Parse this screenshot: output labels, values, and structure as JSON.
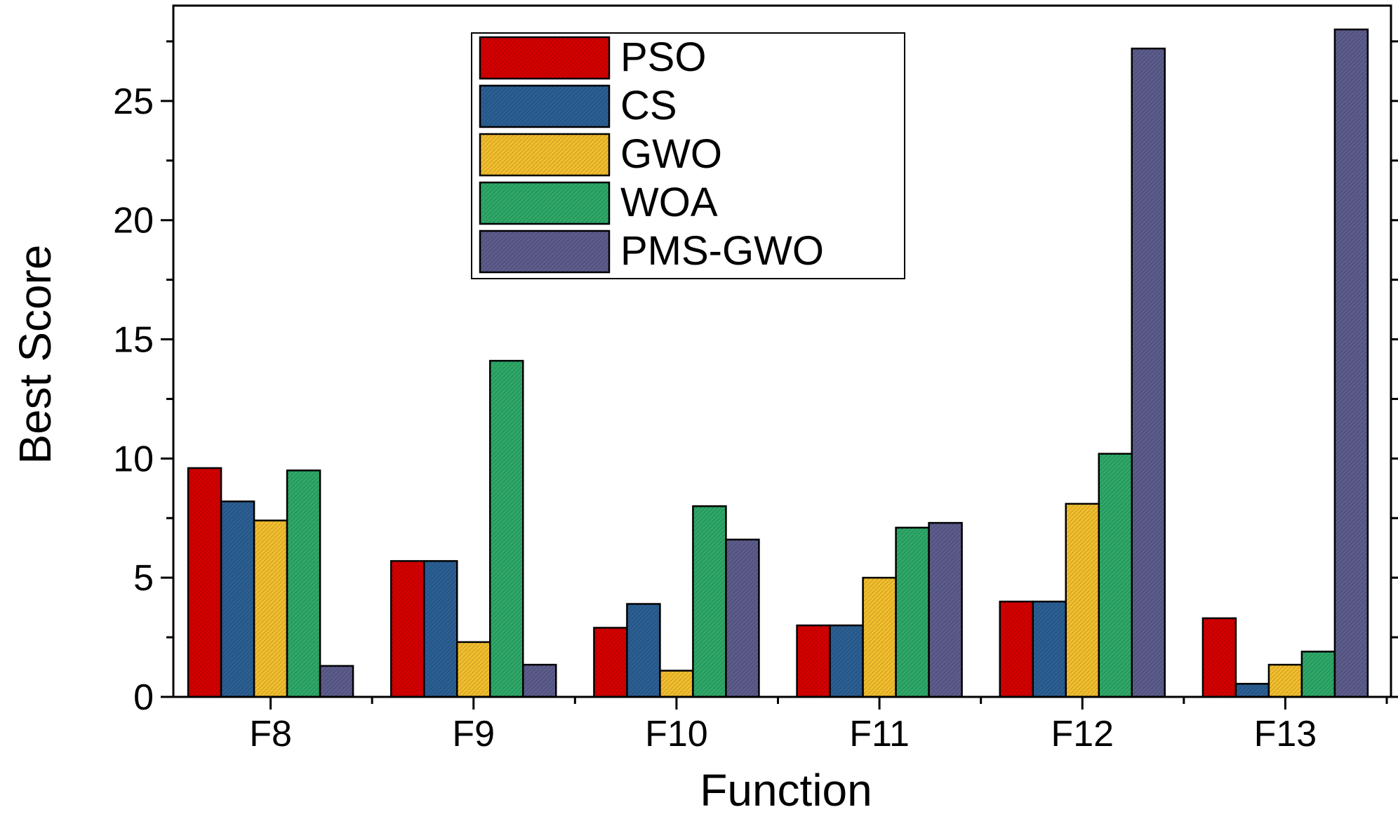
{
  "chart_data": {
    "type": "bar",
    "title": "",
    "xlabel": "Function",
    "ylabel": "Best Score",
    "ylim": [
      0,
      29
    ],
    "yticks": [
      0,
      5,
      10,
      15,
      20,
      25
    ],
    "categories": [
      "F8",
      "F9",
      "F10",
      "F11",
      "F12",
      "F13"
    ],
    "series": [
      {
        "name": "PSO",
        "color": "#d40000",
        "values": [
          9.6,
          5.7,
          2.9,
          3.0,
          4.0,
          3.3
        ]
      },
      {
        "name": "CS",
        "color": "#2b5f93",
        "values": [
          8.2,
          5.7,
          3.9,
          3.0,
          4.0,
          0.55
        ]
      },
      {
        "name": "GWO",
        "color": "#f2be2e",
        "values": [
          7.4,
          2.3,
          1.1,
          5.0,
          8.1,
          1.35
        ]
      },
      {
        "name": "WOA",
        "color": "#2ea868",
        "values": [
          9.5,
          14.1,
          8.0,
          7.1,
          10.2,
          1.9
        ]
      },
      {
        "name": "PMS-GWO",
        "color": "#5c5c8c",
        "values": [
          1.3,
          1.35,
          6.6,
          7.3,
          27.2,
          28.0
        ]
      }
    ],
    "legend_position": "top-left inside",
    "grid": false
  }
}
